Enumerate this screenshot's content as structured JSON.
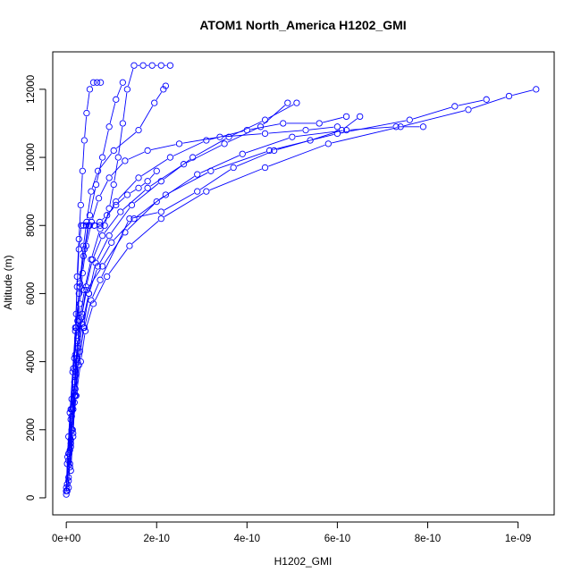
{
  "chart_data": {
    "type": "line",
    "title": "ATOM1 North_America H1202_GMI",
    "xlabel": "H1202_GMI",
    "ylabel": "Altitude (m)",
    "xlim": [
      -3e-11,
      1.08e-09
    ],
    "ylim": [
      -500,
      13100
    ],
    "xticks": [
      0,
      2e-10,
      4e-10,
      6e-10,
      8e-10,
      1e-09
    ],
    "xtick_labels": [
      "0e+00",
      "2e-10",
      "4e-10",
      "6e-10",
      "8e-10",
      "1e-09"
    ],
    "yticks": [
      0,
      2000,
      4000,
      6000,
      8000,
      10000,
      12000
    ],
    "ytick_labels": [
      "0",
      "2000",
      "4000",
      "6000",
      "8000",
      "10000",
      "12000"
    ],
    "marker": "open-circle",
    "line_color": "#0000ff",
    "grid": false,
    "series": [
      {
        "x": [
          0.0,
          2e-12,
          5e-12,
          1.2e-11,
          1.8e-11,
          2.5e-11,
          3e-11,
          3.8e-11,
          4.5e-11,
          5.5e-11,
          7e-11,
          1.05e-10,
          1.6e-10,
          1.95e-10,
          2.15e-10,
          2.2e-10
        ],
        "y": [
          200,
          1000,
          1800,
          2900,
          4100,
          5200,
          6300,
          7400,
          8100,
          9000,
          9600,
          10200,
          10800,
          11600,
          12000,
          12100
        ]
      },
      {
        "x": [
          0.0,
          5e-12,
          1e-11,
          2e-11,
          3e-11,
          4e-11,
          5.5e-11,
          7.5e-11,
          1.4e-10,
          2.1e-10,
          2.9e-10,
          3.7e-10,
          4.6e-10,
          5.4e-10,
          6.1e-10,
          6.5e-10
        ],
        "y": [
          300,
          1100,
          2300,
          3200,
          4300,
          5000,
          5800,
          6400,
          8200,
          8400,
          9000,
          9700,
          10200,
          10500,
          10800,
          11200
        ]
      },
      {
        "x": [
          5e-12,
          1e-11,
          1.5e-11,
          2e-11,
          2.5e-11,
          3.5e-11,
          4.5e-11,
          8e-11,
          1.3e-10,
          2e-10,
          2.9e-10,
          3.9e-10,
          5e-10,
          6.2e-10,
          7.3e-10,
          7.9e-10
        ],
        "y": [
          500,
          1500,
          2600,
          3600,
          4600,
          5400,
          6100,
          6800,
          7800,
          8700,
          9500,
          10100,
          10600,
          10800,
          10900,
          10900
        ]
      },
      {
        "x": [
          1e-11,
          1.5e-11,
          2e-11,
          2.5e-11,
          3.5e-11,
          5e-11,
          7e-11,
          1e-10,
          1.5e-10,
          2.2e-10,
          3.2e-10,
          4.5e-10,
          6e-10,
          7.6e-10,
          8.6e-10,
          9.3e-10
        ],
        "y": [
          800,
          1900,
          3000,
          4000,
          5100,
          6000,
          6800,
          7500,
          8200,
          8900,
          9600,
          10200,
          10700,
          11100,
          11500,
          11700
        ]
      },
      {
        "x": [
          2e-12,
          8e-12,
          1.4e-11,
          2.2e-11,
          3.2e-11,
          4.2e-11,
          6e-11,
          9e-11,
          1.4e-10,
          2.1e-10,
          3.1e-10,
          4.4e-10,
          5.8e-10,
          7.4e-10,
          8.9e-10,
          9.8e-10,
          1.04e-09
        ],
        "y": [
          200,
          900,
          2000,
          3000,
          4000,
          4900,
          5700,
          6500,
          7400,
          8200,
          9000,
          9700,
          10400,
          10900,
          11400,
          11800,
          12000
        ]
      },
      {
        "x": [
          5e-12,
          1e-11,
          1.8e-11,
          2.8e-11,
          3.8e-11,
          5e-11,
          6.5e-11,
          9.5e-11,
          1.45e-10,
          2.1e-10,
          2.8e-10,
          3.6e-10,
          4.4e-10,
          5.1e-10
        ],
        "y": [
          600,
          1700,
          2800,
          3900,
          5000,
          6000,
          6900,
          7700,
          8600,
          9300,
          10000,
          10600,
          11100,
          11600
        ]
      },
      {
        "x": [
          2e-12,
          6e-12,
          1.2e-11,
          1.8e-11,
          2.6e-11,
          3.4e-11,
          4.4e-11,
          5.8e-11,
          8e-11,
          1.2e-10,
          1.8e-10,
          2.6e-10,
          3.5e-10,
          4.3e-10,
          4.9e-10
        ],
        "y": [
          400,
          1300,
          2400,
          3400,
          4400,
          5300,
          6200,
          7000,
          7700,
          8400,
          9100,
          9800,
          10400,
          10900,
          11600
        ]
      },
      {
        "x": [
          8e-12,
          1.2e-11,
          1.8e-11,
          2.4e-11,
          3e-11,
          4e-11,
          5.5e-11,
          7.5e-11,
          1.1e-10,
          1.6e-10,
          2.3e-10,
          3.1e-10,
          4e-10,
          4.8e-10,
          5.6e-10,
          6.2e-10
        ],
        "y": [
          1000,
          2000,
          3100,
          4100,
          5200,
          6100,
          7000,
          7900,
          8700,
          9400,
          10000,
          10500,
          10800,
          11000,
          11000,
          11200
        ]
      },
      {
        "x": [
          1e-11,
          1.5e-11,
          2e-11,
          2.5e-11,
          3e-11,
          3.6e-11,
          4.4e-11,
          5.6e-11,
          7.2e-11,
          9.5e-11,
          1.3e-10,
          1.8e-10,
          2.5e-10,
          3.4e-10,
          4.4e-10,
          5.3e-10,
          6e-10
        ],
        "y": [
          1600,
          2600,
          3700,
          4700,
          5700,
          6600,
          7400,
          8100,
          8800,
          9400,
          9900,
          10200,
          10400,
          10600,
          10700,
          10800,
          10900
        ]
      },
      {
        "x": [
          0.0,
          3e-12,
          8e-12,
          1.4e-11,
          2e-11,
          2.8e-11,
          3.8e-11,
          5e-11,
          6.2e-11,
          7.5e-11,
          8.5e-11,
          9.5e-11,
          1.05e-10,
          1.15e-10,
          1.25e-10,
          1.35e-10,
          1.5e-10,
          1.7e-10,
          1.9e-10,
          2.1e-10,
          2.3e-10
        ],
        "y": [
          200,
          1200,
          2500,
          3700,
          4900,
          6000,
          7100,
          8000,
          8000,
          8000,
          8000,
          8500,
          9200,
          10000,
          11000,
          12000,
          12700,
          12700,
          12700,
          12700,
          12700
        ]
      },
      {
        "x": [
          0.0,
          5e-12,
          1e-11,
          1.6e-11,
          2.2e-11,
          3e-11,
          4e-11,
          5.2e-11,
          6.6e-11,
          8e-11,
          9.5e-11,
          1.1e-10,
          1.25e-10
        ],
        "y": [
          100,
          1300,
          2600,
          3800,
          5000,
          6200,
          7300,
          8300,
          9200,
          10000,
          10900,
          11700,
          12200
        ]
      },
      {
        "x": [
          1.5e-11,
          1.8e-11,
          2e-11,
          2.2e-11,
          2.4e-11,
          2.8e-11,
          3.2e-11,
          3.6e-11,
          4e-11,
          4.5e-11,
          5.2e-11,
          6e-11,
          6.8e-11,
          7.6e-11
        ],
        "y": [
          1800,
          3000,
          4200,
          5400,
          6500,
          7600,
          8600,
          9600,
          10500,
          11300,
          12000,
          12200,
          12200,
          12200
        ]
      },
      {
        "x": [
          5e-12,
          8e-12,
          1.2e-11,
          1.6e-11,
          2e-11,
          2.4e-11,
          2.8e-11,
          3.3e-11,
          3.8e-11,
          4.4e-11,
          5.2e-11,
          6.2e-11,
          7.4e-11,
          9e-11,
          1.1e-10,
          1.35e-10,
          1.6e-10,
          1.8e-10,
          2e-10
        ],
        "y": [
          300,
          1400,
          2600,
          3800,
          5000,
          6200,
          7300,
          8000,
          8000,
          8000,
          8000,
          8000,
          8100,
          8300,
          8600,
          8900,
          9100,
          9300,
          9600
        ]
      }
    ]
  }
}
